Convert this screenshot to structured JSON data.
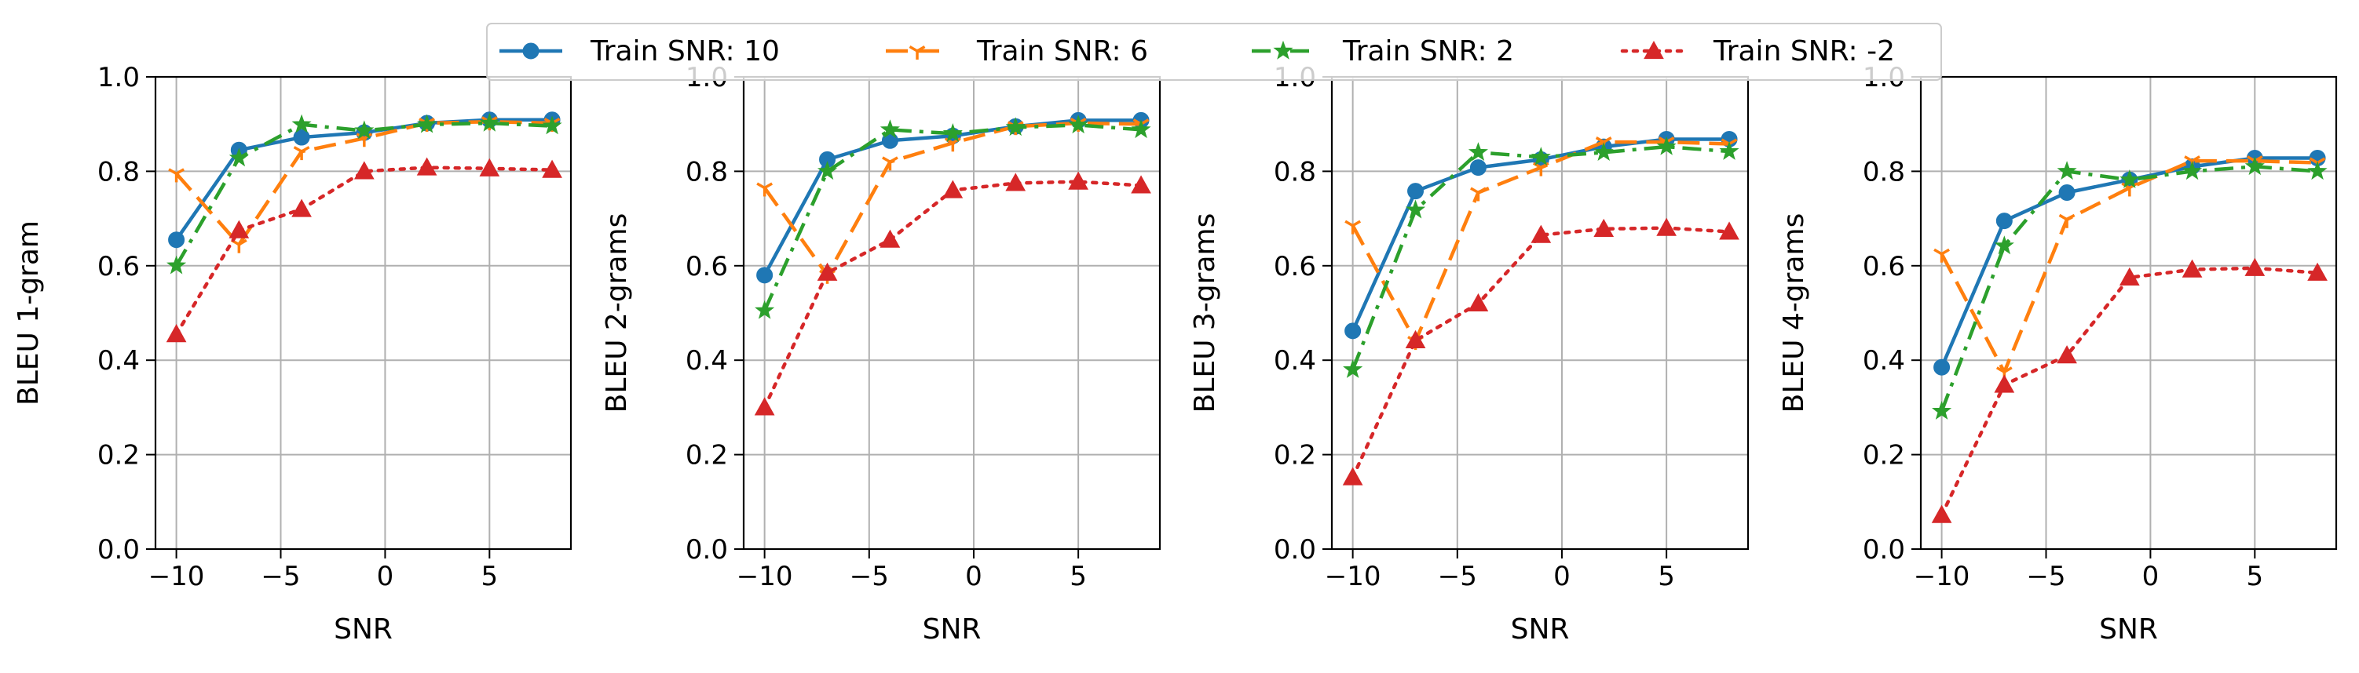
{
  "legend": [
    {
      "label": "Train SNR:  10",
      "color": "#1f77b4",
      "dash": "solid",
      "marker": "circle"
    },
    {
      "label": "Train SNR:  6",
      "color": "#ff7f0e",
      "dash": "dashed",
      "marker": "tri"
    },
    {
      "label": "Train SNR:  2",
      "color": "#2ca02c",
      "dash": "dashdot",
      "marker": "star"
    },
    {
      "label": "Train SNR:  -2",
      "color": "#d62728",
      "dash": "dotted",
      "marker": "triangle"
    }
  ],
  "chart_data": [
    {
      "type": "line",
      "xlabel": "SNR",
      "ylabel": "BLEU 1-gram",
      "xlim": [
        -11.0,
        8.9
      ],
      "ylim": [
        0,
        1
      ],
      "xticks": [
        -10,
        -5,
        0,
        5
      ],
      "yticks": [
        0.0,
        0.2,
        0.4,
        0.6,
        0.8,
        1.0
      ],
      "x": [
        -10,
        -7,
        -4,
        -1,
        2,
        5,
        8
      ],
      "series": [
        {
          "name": "Train SNR:  10",
          "values": [
            0.655,
            0.845,
            0.872,
            0.882,
            0.902,
            0.909,
            0.909
          ]
        },
        {
          "name": "Train SNR:  6",
          "values": [
            0.795,
            0.645,
            0.842,
            0.87,
            0.902,
            0.905,
            0.902
          ]
        },
        {
          "name": "Train SNR:  2",
          "values": [
            0.6,
            0.828,
            0.899,
            0.886,
            0.899,
            0.902,
            0.896
          ]
        },
        {
          "name": "Train SNR:  -2",
          "values": [
            0.455,
            0.675,
            0.72,
            0.8,
            0.808,
            0.806,
            0.803
          ]
        }
      ]
    },
    {
      "type": "line",
      "xlabel": "SNR",
      "ylabel": "BLEU 2-grams",
      "xlim": [
        -11.0,
        8.9
      ],
      "ylim": [
        0,
        1
      ],
      "xticks": [
        -10,
        -5,
        0,
        5
      ],
      "yticks": [
        0.0,
        0.2,
        0.4,
        0.6,
        0.8,
        1.0
      ],
      "x": [
        -10,
        -7,
        -4,
        -1,
        2,
        5,
        8
      ],
      "series": [
        {
          "name": "Train SNR:  10",
          "values": [
            0.58,
            0.825,
            0.865,
            0.875,
            0.895,
            0.908,
            0.908
          ]
        },
        {
          "name": "Train SNR:  6",
          "values": [
            0.765,
            0.58,
            0.82,
            0.86,
            0.895,
            0.902,
            0.9
          ]
        },
        {
          "name": "Train SNR:  2",
          "values": [
            0.505,
            0.8,
            0.888,
            0.88,
            0.893,
            0.898,
            0.888
          ]
        },
        {
          "name": "Train SNR:  -2",
          "values": [
            0.3,
            0.585,
            0.655,
            0.76,
            0.775,
            0.778,
            0.77
          ]
        }
      ]
    },
    {
      "type": "line",
      "xlabel": "SNR",
      "ylabel": "BLEU 3-grams",
      "xlim": [
        -11.0,
        8.9
      ],
      "ylim": [
        0,
        1
      ],
      "xticks": [
        -10,
        -5,
        0,
        5
      ],
      "yticks": [
        0.0,
        0.2,
        0.4,
        0.6,
        0.8,
        1.0
      ],
      "x": [
        -10,
        -7,
        -4,
        -1,
        2,
        5,
        8
      ],
      "series": [
        {
          "name": "Train SNR:  10",
          "values": [
            0.462,
            0.758,
            0.808,
            0.825,
            0.852,
            0.868,
            0.868
          ]
        },
        {
          "name": "Train SNR:  6",
          "values": [
            0.685,
            0.44,
            0.755,
            0.808,
            0.862,
            0.862,
            0.858
          ]
        },
        {
          "name": "Train SNR:  2",
          "values": [
            0.38,
            0.718,
            0.84,
            0.83,
            0.84,
            0.852,
            0.842
          ]
        },
        {
          "name": "Train SNR:  -2",
          "values": [
            0.152,
            0.442,
            0.52,
            0.665,
            0.678,
            0.68,
            0.672
          ]
        }
      ]
    },
    {
      "type": "line",
      "xlabel": "SNR",
      "ylabel": "BLEU 4-grams",
      "xlim": [
        -11.0,
        8.9
      ],
      "ylim": [
        0,
        1
      ],
      "xticks": [
        -10,
        -5,
        0,
        5
      ],
      "yticks": [
        0.0,
        0.2,
        0.4,
        0.6,
        0.8,
        1.0
      ],
      "x": [
        -10,
        -7,
        -4,
        -1,
        2,
        5,
        8
      ],
      "series": [
        {
          "name": "Train SNR:  10",
          "values": [
            0.385,
            0.695,
            0.755,
            0.782,
            0.81,
            0.828,
            0.828
          ]
        },
        {
          "name": "Train SNR:  6",
          "values": [
            0.625,
            0.375,
            0.698,
            0.765,
            0.822,
            0.822,
            0.818
          ]
        },
        {
          "name": "Train SNR:  2",
          "values": [
            0.292,
            0.642,
            0.8,
            0.782,
            0.8,
            0.81,
            0.8
          ]
        },
        {
          "name": "Train SNR:  -2",
          "values": [
            0.072,
            0.348,
            0.41,
            0.575,
            0.592,
            0.595,
            0.585
          ]
        }
      ]
    }
  ]
}
